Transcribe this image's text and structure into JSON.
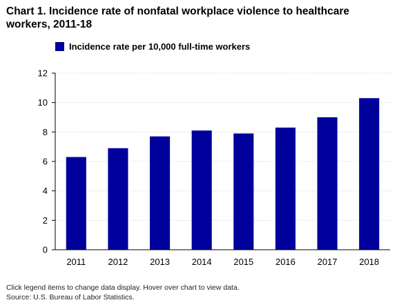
{
  "title": "Chart 1. Incidence rate of nonfatal workplace violence to healthcare workers, 2011-18",
  "note": "Click legend items to change data display. Hover over chart to view data.",
  "source": "Source: U.S. Bureau of Labor Statistics.",
  "colors": {
    "bar": "#00009c",
    "grid": "#c0c0c0",
    "axis": "#000000"
  },
  "chart_data": {
    "type": "bar",
    "categories": [
      "2011",
      "2012",
      "2013",
      "2014",
      "2015",
      "2016",
      "2017",
      "2018"
    ],
    "series": [
      {
        "name": "Incidence rate per 10,000 full-time workers",
        "values": [
          6.3,
          6.9,
          7.7,
          8.1,
          7.9,
          8.3,
          9.0,
          10.3
        ]
      }
    ],
    "ylim": [
      0,
      12
    ],
    "yticks": [
      0,
      2,
      4,
      6,
      8,
      10,
      12
    ],
    "grid": true,
    "legend": "top-left"
  }
}
